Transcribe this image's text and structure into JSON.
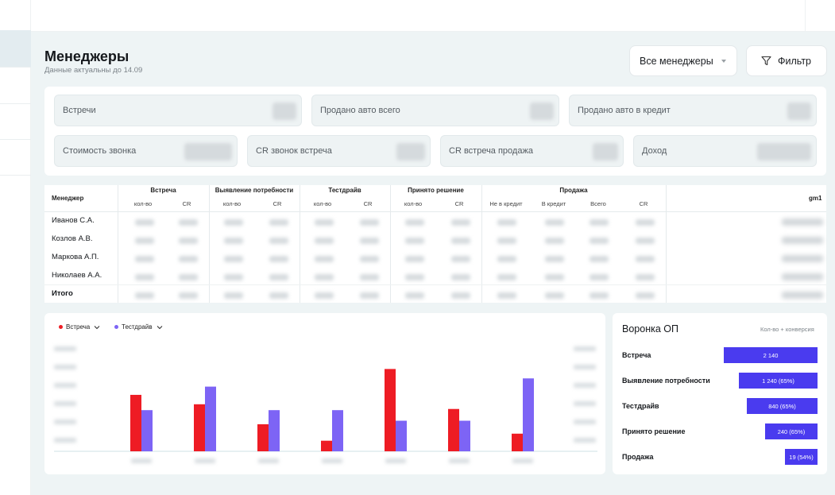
{
  "header": {
    "title": "Менеджеры",
    "subtitle": "Данные актуальны до 14.09",
    "managers_select": "Все менеджеры",
    "filter_label": "Фильтр"
  },
  "kpis": [
    "Встречи",
    "Продано авто всего",
    "Продано авто в кредит",
    "Стоимость звонка",
    "CR звонок встреча",
    "CR встреча продажа",
    "Доход"
  ],
  "table": {
    "manager_header": "Менеджер",
    "groups": [
      "Встреча",
      "Выявление потребности",
      "Тестдрайв",
      "Принято решение",
      "Продажа"
    ],
    "sub_qty": "кол-во",
    "sub_cr": "CR",
    "sales_sub": [
      "Не в кредит",
      "В кредит",
      "Всего",
      "CR"
    ],
    "gm_header": "gm1",
    "rows": [
      "Иванов С.А.",
      "Козлов А.В.",
      "Маркова А.П.",
      "Николаев А.А."
    ],
    "total_label": "Итого"
  },
  "chart_data": {
    "type": "bar",
    "legend_placement": "top-left",
    "grid": false,
    "series": [
      {
        "name": "Встреча",
        "color": "#ee1c24",
        "values": [
          48,
          40,
          23,
          9,
          70,
          36,
          15
        ]
      },
      {
        "name": "Тестдрайв",
        "color": "#7d64f5",
        "values": [
          35,
          55,
          35,
          35,
          26,
          26,
          62
        ]
      }
    ],
    "ylim": [
      0,
      100
    ]
  },
  "funnel": {
    "title": "Воронка ОП",
    "note": "Кол-во + конверсия",
    "bar_color": "#4a3bef",
    "stages": [
      {
        "label": "Встреча",
        "value": "2 140",
        "share": 1.0
      },
      {
        "label": "Выявление потребности",
        "value": "1 240 (65%)",
        "share": 0.84
      },
      {
        "label": "Тестдрайв",
        "value": "840 (65%)",
        "share": 0.75
      },
      {
        "label": "Принято решение",
        "value": "240 (65%)",
        "share": 0.56
      },
      {
        "label": "Продажа",
        "value": "19 (54%)",
        "share": 0.35
      }
    ]
  }
}
